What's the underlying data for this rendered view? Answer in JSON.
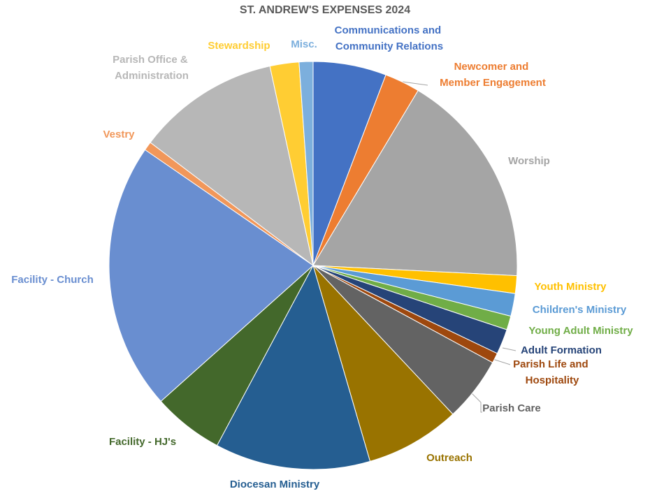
{
  "chart_data": {
    "type": "pie",
    "title": "ST. ANDREW'S EXPENSES 2024",
    "categories": [
      "Communications and Community Relations",
      "Newcomer and Member Engagement",
      "Worship",
      "Youth Ministry",
      "Children's Ministry",
      "Young Adult Ministry",
      "Adult Formation",
      "Parish Life and Hospitality",
      "Parish Care",
      "Outreach",
      "Diocesan Ministry",
      "Facility - HJ's",
      "Facility - Church",
      "Vestry",
      "Parish Office & Administration",
      "Stewardship",
      "Misc."
    ],
    "values": [
      5.8,
      2.8,
      17.2,
      1.4,
      1.8,
      1.1,
      2.0,
      0.8,
      5.1,
      7.5,
      12.3,
      5.6,
      21.2,
      0.7,
      11.3,
      2.3,
      1.1
    ],
    "colors": [
      "#4472c4",
      "#ed7d31",
      "#a5a5a5",
      "#ffc000",
      "#5b9bd5",
      "#70ad47",
      "#264478",
      "#9e480e",
      "#636363",
      "#997300",
      "#255e91",
      "#43682b",
      "#698ed0",
      "#f1975a",
      "#b7b7b7",
      "#ffcd33",
      "#7cafdd"
    ]
  }
}
